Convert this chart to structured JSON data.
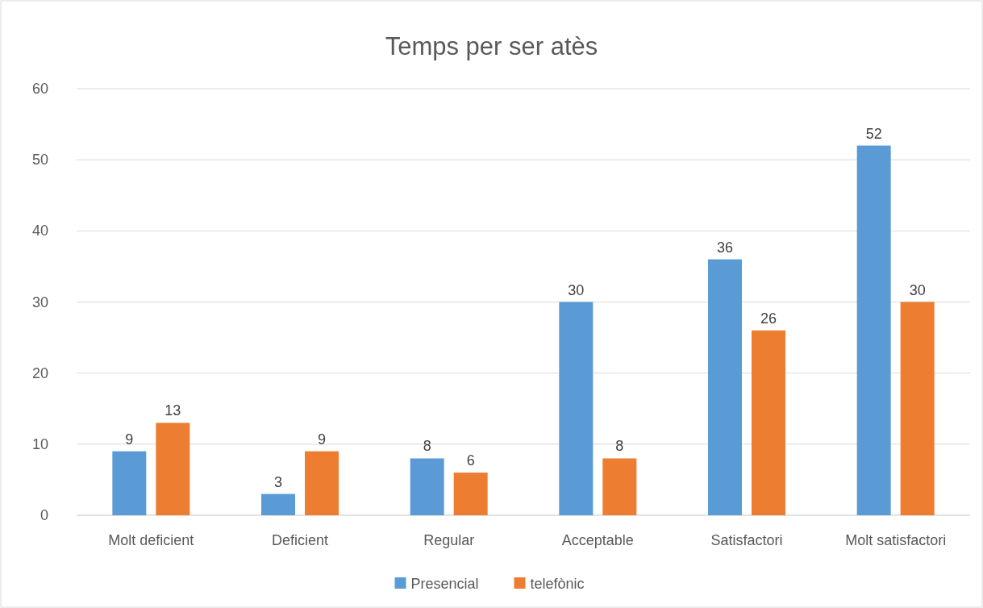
{
  "chart_data": {
    "type": "bar",
    "title": "Temps per ser atès",
    "categories": [
      "Molt deficient",
      "Deficient",
      "Regular",
      "Acceptable",
      "Satisfactori",
      "Molt satisfactori"
    ],
    "series": [
      {
        "name": "Presencial",
        "color": "#5b9bd5",
        "values": [
          9,
          3,
          8,
          30,
          36,
          52
        ]
      },
      {
        "name": "telefònic",
        "color": "#ed7d31",
        "values": [
          13,
          9,
          6,
          8,
          26,
          30
        ]
      }
    ],
    "ylim": [
      0,
      60
    ],
    "yticks": [
      0,
      10,
      20,
      30,
      40,
      50,
      60
    ],
    "grid": "y",
    "legend": "bottom",
    "data_labels": true
  }
}
